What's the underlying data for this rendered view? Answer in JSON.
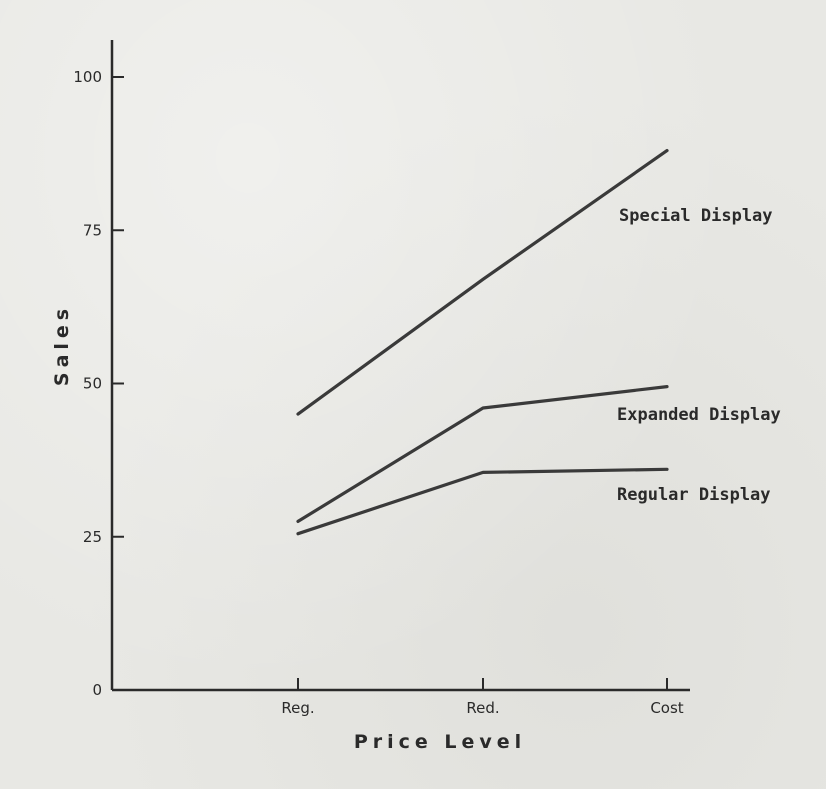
{
  "chart_data": {
    "type": "line",
    "title": "",
    "xlabel": "Price Level",
    "ylabel": "Sales",
    "categories": [
      "Reg.",
      "Red.",
      "Cost"
    ],
    "ylim": [
      0,
      100
    ],
    "yticks": [
      0,
      25,
      50,
      75,
      100
    ],
    "grid": false,
    "legend": "inline-right",
    "series": [
      {
        "name": "Special Display",
        "values": [
          45,
          67,
          88
        ]
      },
      {
        "name": "Expanded Display",
        "values": [
          27.5,
          46,
          49.5
        ]
      },
      {
        "name": "Regular Display",
        "values": [
          25.5,
          35.5,
          36
        ]
      }
    ],
    "colors": {
      "ink": "#2a2a2a",
      "line": "#3a3a3a",
      "paper": "#e8e8e4"
    }
  }
}
